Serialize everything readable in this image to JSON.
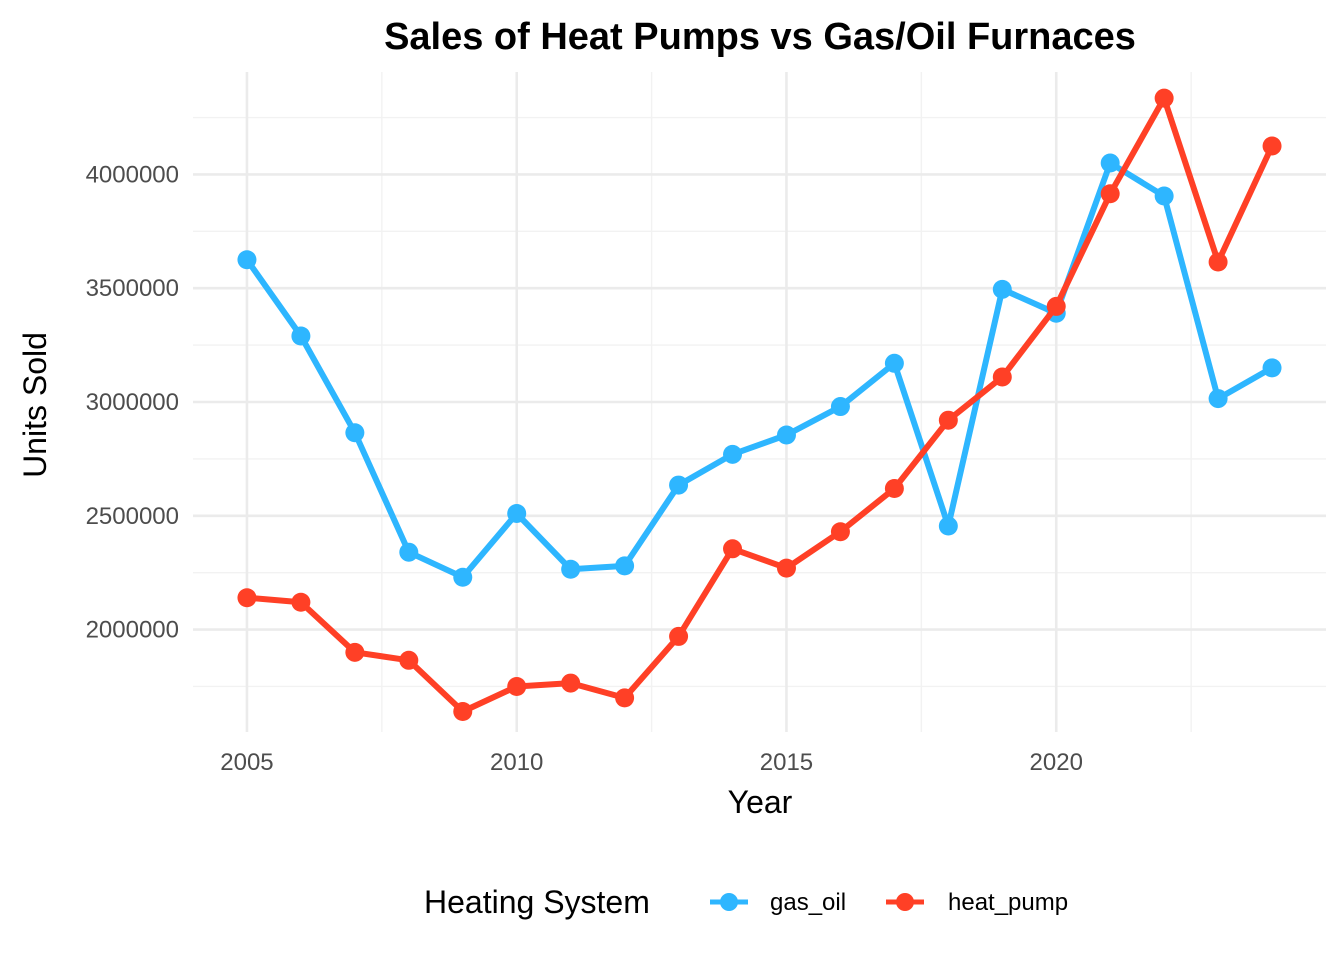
{
  "chart_data": {
    "type": "line",
    "title": "Sales of Heat Pumps vs Gas/Oil Furnaces",
    "xlabel": "Year",
    "ylabel": "Units Sold",
    "x": [
      2005,
      2006,
      2007,
      2008,
      2009,
      2010,
      2011,
      2012,
      2013,
      2014,
      2015,
      2016,
      2017,
      2018,
      2019,
      2020,
      2021,
      2022,
      2023,
      2024
    ],
    "xlim": [
      2004,
      2025
    ],
    "ylim": [
      1550000,
      4450000
    ],
    "x_ticks": [
      2005,
      2010,
      2015,
      2020
    ],
    "x_minor_ticks": [
      2007.5,
      2012.5,
      2017.5,
      2022.5
    ],
    "y_ticks": [
      2000000,
      2500000,
      3000000,
      3500000,
      4000000
    ],
    "y_minor_ticks": [
      1750000,
      2250000,
      2750000,
      3250000,
      3750000,
      4250000
    ],
    "x_tick_labels": [
      "2005",
      "2010",
      "2015",
      "2020"
    ],
    "y_tick_labels": [
      "2000000",
      "2500000",
      "3000000",
      "3500000",
      "4000000"
    ],
    "grid": true,
    "legend": {
      "title": "Heating System",
      "position": "bottom"
    },
    "series": [
      {
        "name": "gas_oil",
        "color": "#2EB6FF",
        "values": [
          3625000,
          3290000,
          2865000,
          2340000,
          2230000,
          2510000,
          2265000,
          2280000,
          2635000,
          2770000,
          2855000,
          2980000,
          3170000,
          2455000,
          3495000,
          3390000,
          4050000,
          3905000,
          3015000,
          3150000
        ]
      },
      {
        "name": "heat_pump",
        "color": "#FF4026",
        "values": [
          2140000,
          2120000,
          1900000,
          1865000,
          1640000,
          1750000,
          1765000,
          1700000,
          1970000,
          2355000,
          2270000,
          2430000,
          2620000,
          2920000,
          3110000,
          3420000,
          3915000,
          4335000,
          3615000,
          4125000
        ]
      }
    ]
  }
}
